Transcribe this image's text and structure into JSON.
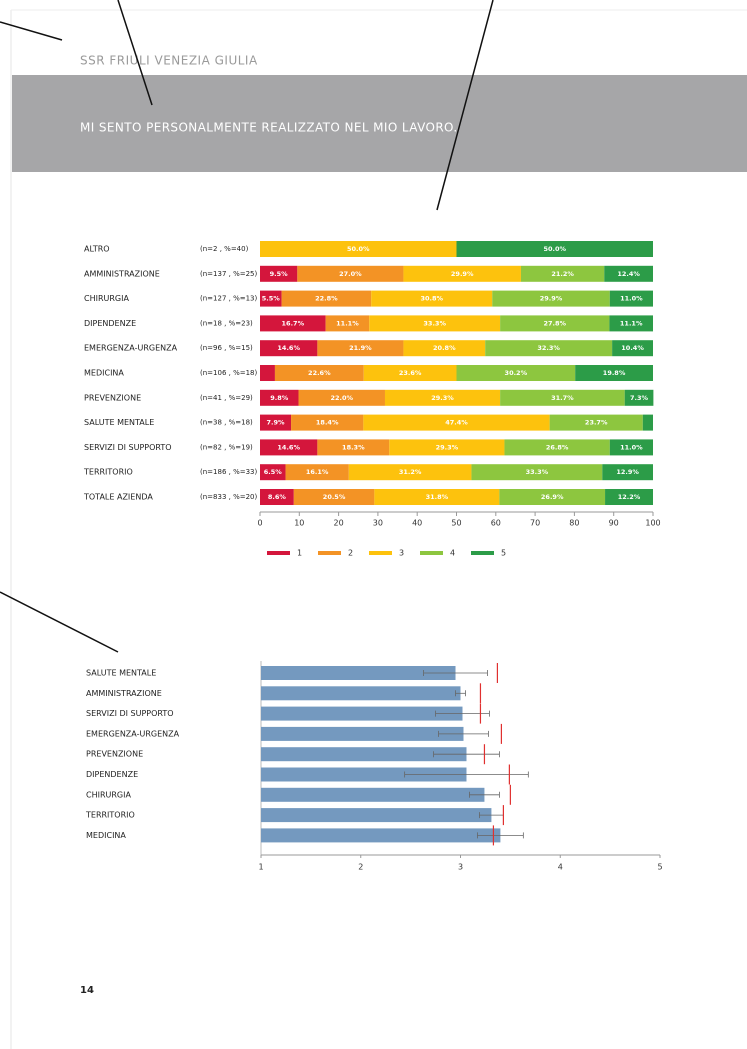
{
  "header": "SSR FRIULI VENEZIA GIULIA",
  "banner": "MI SENTO PERSONALMENTE REALIZZATO NEL MIO LAVORO.",
  "page_number": "14",
  "chart_data": [
    {
      "type": "stacked_bar",
      "categories": [
        "ALTRO",
        "AMMINISTRAZIONE",
        "CHIRURGIA",
        "DIPENDENZE",
        "EMERGENZA-URGENZA",
        "MEDICINA",
        "PREVENZIONE",
        "SALUTE MENTALE",
        "SERVIZI DI SUPPORTO",
        "TERRITORIO",
        "TOTALE AZIENDA"
      ],
      "category_notes": [
        "(n=2 , %=40)",
        "(n=137 , %=25)",
        "(n=127 , %=13)",
        "(n=18 , %=23)",
        "(n=96 , %=15)",
        "(n=106 , %=18)",
        "(n=41 , %=29)",
        "(n=38 , %=18)",
        "(n=82 , %=19)",
        "(n=186 , %=33)",
        "(n=833 , %=20)"
      ],
      "series": [
        {
          "name": "1",
          "color": "#d4163c",
          "values": [
            0,
            9.5,
            5.5,
            16.7,
            14.6,
            3.8,
            9.8,
            7.9,
            14.6,
            6.5,
            8.6
          ],
          "value_labels": [
            null,
            "9.5%",
            "5.5%",
            "16.7%",
            "14.6%",
            null,
            "9.8%",
            "7.9%",
            "14.6%",
            "6.5%",
            "8.6%"
          ]
        },
        {
          "name": "2",
          "color": "#f39325",
          "values": [
            0,
            27.0,
            22.8,
            11.1,
            21.9,
            22.6,
            22.0,
            18.4,
            18.3,
            16.1,
            20.5
          ],
          "value_labels": [
            null,
            "27.0%",
            "22.8%",
            "11.1%",
            "21.9%",
            "22.6%",
            "22.0%",
            "18.4%",
            "18.3%",
            "16.1%",
            "20.5%"
          ]
        },
        {
          "name": "3",
          "color": "#fdc20d",
          "values": [
            50.0,
            29.9,
            30.8,
            33.3,
            20.8,
            23.6,
            29.3,
            47.4,
            29.3,
            31.2,
            31.8
          ],
          "value_labels": [
            "50.0%",
            "29.9%",
            "30.8%",
            "33.3%",
            "20.8%",
            "23.6%",
            "29.3%",
            "47.4%",
            "29.3%",
            "31.2%",
            "31.8%"
          ]
        },
        {
          "name": "4",
          "color": "#8dc63f",
          "values": [
            0,
            21.2,
            29.9,
            27.8,
            32.3,
            30.2,
            31.7,
            23.7,
            26.8,
            33.3,
            26.9
          ],
          "value_labels": [
            null,
            "21.2%",
            "29.9%",
            "27.8%",
            "32.3%",
            "30.2%",
            "31.7%",
            "23.7%",
            "26.8%",
            "33.3%",
            "26.9%"
          ]
        },
        {
          "name": "5",
          "color": "#2c9c48",
          "values": [
            50.0,
            12.4,
            11.0,
            11.1,
            10.4,
            19.8,
            7.3,
            2.6,
            11.0,
            12.9,
            12.2
          ],
          "value_labels": [
            "50.0%",
            "12.4%",
            "11.0%",
            "11.1%",
            "10.4%",
            "19.8%",
            "7.3%",
            null,
            "11.0%",
            "12.9%",
            "12.2%"
          ]
        }
      ],
      "xlim": [
        0,
        100
      ],
      "xticks": [
        0,
        10,
        20,
        30,
        40,
        50,
        60,
        70,
        80,
        90,
        100
      ],
      "legend": "bottom"
    },
    {
      "type": "bar",
      "categories": [
        "SALUTE MENTALE",
        "AMMINISTRAZIONE",
        "SERVIZI DI SUPPORTO",
        "EMERGENZA-URGENZA",
        "PREVENZIONE",
        "DIPENDENZE",
        "CHIRURGIA",
        "TERRITORIO",
        "MEDICINA"
      ],
      "values": [
        2.95,
        3.0,
        3.02,
        3.03,
        3.06,
        3.06,
        3.24,
        3.31,
        3.4
      ],
      "errors": [
        0.32,
        0.05,
        0.27,
        0.25,
        0.33,
        0.62,
        0.15,
        0.12,
        0.23
      ],
      "markers": [
        3.37,
        3.2,
        3.2,
        3.41,
        3.24,
        3.49,
        3.5,
        3.43,
        3.33
      ],
      "color": "#7499bf",
      "marker_color": "#e0302f",
      "xlim": [
        1,
        5
      ],
      "xticks": [
        1,
        2,
        3,
        4,
        5
      ]
    }
  ]
}
